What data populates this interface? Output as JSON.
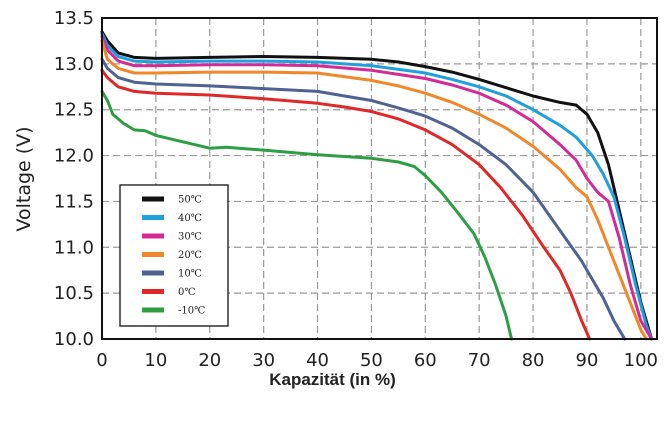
{
  "chart_data": {
    "type": "line",
    "title": "",
    "xlabel": "Kapazität (in %)",
    "ylabel": "Voltage (V)",
    "xlim": [
      0,
      103
    ],
    "ylim": [
      10.0,
      13.5
    ],
    "xticks": [
      0,
      10,
      20,
      30,
      40,
      50,
      60,
      70,
      80,
      90,
      100
    ],
    "yticks": [
      "10.0",
      "10.5",
      "11.0",
      "11.5",
      "12.0",
      "12.5",
      "13.0",
      "13.5"
    ],
    "grid": true,
    "legend_position": "bottom-left",
    "series": [
      {
        "name": "50℃",
        "color": "#111111",
        "x": [
          0,
          1,
          3,
          6,
          10,
          20,
          30,
          40,
          50,
          55,
          60,
          65,
          70,
          75,
          80,
          85,
          88,
          90,
          92,
          94,
          96,
          98,
          100,
          102
        ],
        "y": [
          13.35,
          13.25,
          13.12,
          13.07,
          13.06,
          13.07,
          13.08,
          13.07,
          13.05,
          13.02,
          12.97,
          12.91,
          12.83,
          12.74,
          12.65,
          12.58,
          12.55,
          12.45,
          12.25,
          11.9,
          11.4,
          10.9,
          10.4,
          10.0
        ]
      },
      {
        "name": "40℃",
        "color": "#1f9fe0",
        "x": [
          0,
          1,
          3,
          6,
          10,
          20,
          30,
          40,
          50,
          60,
          65,
          70,
          75,
          80,
          85,
          88,
          91,
          93,
          95,
          97,
          99,
          101,
          102
        ],
        "y": [
          13.33,
          13.2,
          13.08,
          13.03,
          13.02,
          13.03,
          13.03,
          13.02,
          12.98,
          12.9,
          12.83,
          12.75,
          12.65,
          12.5,
          12.33,
          12.2,
          12.0,
          11.8,
          11.55,
          11.1,
          10.6,
          10.15,
          10.0
        ]
      },
      {
        "name": "30℃",
        "color": "#d42a95",
        "x": [
          0,
          1,
          3,
          6,
          10,
          20,
          30,
          40,
          50,
          60,
          65,
          70,
          75,
          80,
          85,
          88,
          90,
          92,
          94,
          96,
          98,
          100,
          102
        ],
        "y": [
          13.3,
          13.15,
          13.03,
          12.98,
          12.98,
          12.99,
          12.99,
          12.98,
          12.93,
          12.84,
          12.77,
          12.68,
          12.55,
          12.37,
          12.12,
          11.95,
          11.75,
          11.6,
          11.5,
          11.1,
          10.6,
          10.2,
          10.0
        ]
      },
      {
        "name": "20℃",
        "color": "#f0882a",
        "x": [
          0,
          1,
          3,
          6,
          10,
          20,
          30,
          40,
          50,
          55,
          60,
          65,
          70,
          75,
          80,
          85,
          88,
          90,
          92,
          94,
          96,
          98,
          100,
          101
        ],
        "y": [
          13.25,
          13.05,
          12.95,
          12.9,
          12.9,
          12.91,
          12.91,
          12.9,
          12.82,
          12.76,
          12.68,
          12.58,
          12.45,
          12.3,
          12.1,
          11.85,
          11.65,
          11.55,
          11.3,
          11.0,
          10.7,
          10.4,
          10.1,
          10.0
        ]
      },
      {
        "name": "10℃",
        "color": "#4e6294",
        "x": [
          0,
          1,
          3,
          6,
          10,
          20,
          30,
          40,
          45,
          50,
          55,
          60,
          65,
          70,
          75,
          80,
          83,
          86,
          89,
          91,
          93,
          95,
          97
        ],
        "y": [
          13.05,
          12.95,
          12.85,
          12.8,
          12.78,
          12.76,
          12.73,
          12.7,
          12.65,
          12.6,
          12.52,
          12.43,
          12.3,
          12.12,
          11.9,
          11.6,
          11.35,
          11.1,
          10.85,
          10.65,
          10.45,
          10.2,
          10.0
        ]
      },
      {
        "name": "0℃",
        "color": "#e02828",
        "x": [
          0,
          1,
          3,
          6,
          10,
          20,
          30,
          40,
          45,
          50,
          55,
          60,
          65,
          70,
          74,
          78,
          82,
          85,
          87,
          89,
          90.5
        ],
        "y": [
          12.93,
          12.85,
          12.75,
          12.7,
          12.68,
          12.66,
          12.62,
          12.57,
          12.53,
          12.48,
          12.4,
          12.28,
          12.12,
          11.9,
          11.65,
          11.35,
          11.0,
          10.75,
          10.5,
          10.2,
          10.0
        ]
      },
      {
        "name": "-10℃",
        "color": "#2e9e44",
        "x": [
          0,
          1,
          2,
          4,
          6,
          8,
          10,
          15,
          20,
          23,
          30,
          40,
          50,
          55,
          58,
          60,
          63,
          66,
          69,
          71,
          73,
          75,
          76
        ],
        "y": [
          12.7,
          12.6,
          12.45,
          12.35,
          12.28,
          12.27,
          12.22,
          12.15,
          12.08,
          12.09,
          12.06,
          12.01,
          11.97,
          11.93,
          11.88,
          11.78,
          11.6,
          11.38,
          11.15,
          10.9,
          10.6,
          10.25,
          10.0
        ]
      }
    ]
  }
}
